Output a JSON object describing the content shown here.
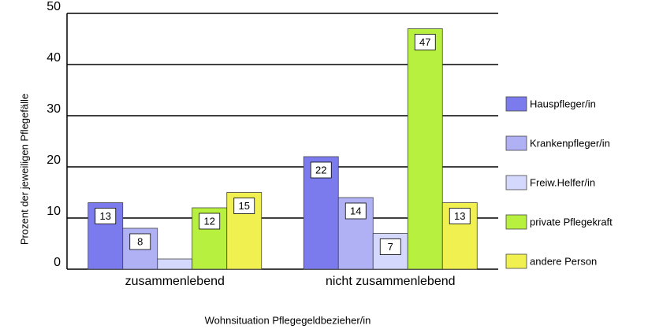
{
  "chart_data": {
    "type": "bar",
    "x_label": "Wohnsituation Pflegegeldbezieher/in",
    "y_label": "Prozent der jeweiligen Pflegefälle",
    "categories": [
      "zusammenlebend",
      "nicht zusammenlebend"
    ],
    "series": [
      {
        "name": "Hauspfleger/in",
        "color": "#7b7bee",
        "values": [
          13,
          22
        ],
        "value_labels": [
          "13",
          "22"
        ]
      },
      {
        "name": "Krankenpfleger/in",
        "color": "#b0b0f5",
        "values": [
          8,
          14
        ],
        "value_labels": [
          "8",
          "14"
        ]
      },
      {
        "name": "Freiw.Helfer/in",
        "color": "#d4d8fc",
        "values": [
          2,
          7
        ],
        "value_labels": [
          null,
          "7"
        ]
      },
      {
        "name": "private Pflegekraft",
        "color": "#b8f040",
        "values": [
          12,
          47
        ],
        "value_labels": [
          "12",
          "47"
        ]
      },
      {
        "name": "andere Person",
        "color": "#f0f050",
        "values": [
          15,
          13
        ],
        "value_labels": [
          "15",
          "13"
        ]
      }
    ],
    "ylim": [
      0,
      50
    ],
    "yticks": [
      0,
      10,
      20,
      30,
      40,
      50
    ],
    "grid": true,
    "legend": "right"
  }
}
